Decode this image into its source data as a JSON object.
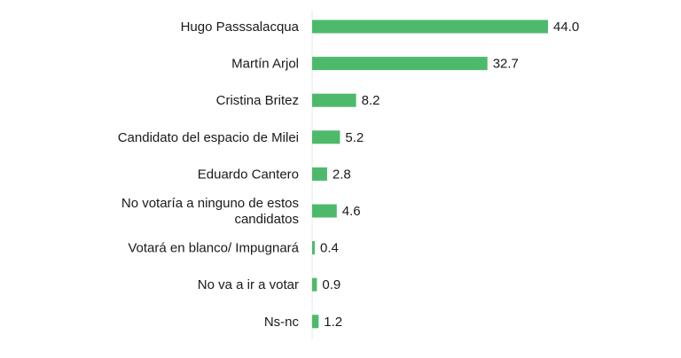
{
  "chart_data": {
    "type": "bar",
    "orientation": "horizontal",
    "categories": [
      [
        "Hugo Passsalacqua"
      ],
      [
        "Martín Arjol"
      ],
      [
        "Cristina Britez"
      ],
      [
        "Candidato del espacio de Milei"
      ],
      [
        "Eduardo Cantero"
      ],
      [
        "No votaría a ninguno de estos",
        "candidatos"
      ],
      [
        "Votará en blanco/ Impugnará"
      ],
      [
        "No va a ir a votar"
      ],
      [
        "Ns-nc"
      ]
    ],
    "values": [
      44.0,
      32.7,
      8.2,
      5.2,
      2.8,
      4.6,
      0.4,
      0.9,
      1.2
    ],
    "value_labels": [
      "44.0",
      "32.7",
      "8.2",
      "5.2",
      "2.8",
      "4.6",
      "0.4",
      "0.9",
      "1.2"
    ],
    "xlim": [
      0,
      44.0
    ],
    "grid": false,
    "legend": "none",
    "bar_color": "#4dba6b"
  }
}
